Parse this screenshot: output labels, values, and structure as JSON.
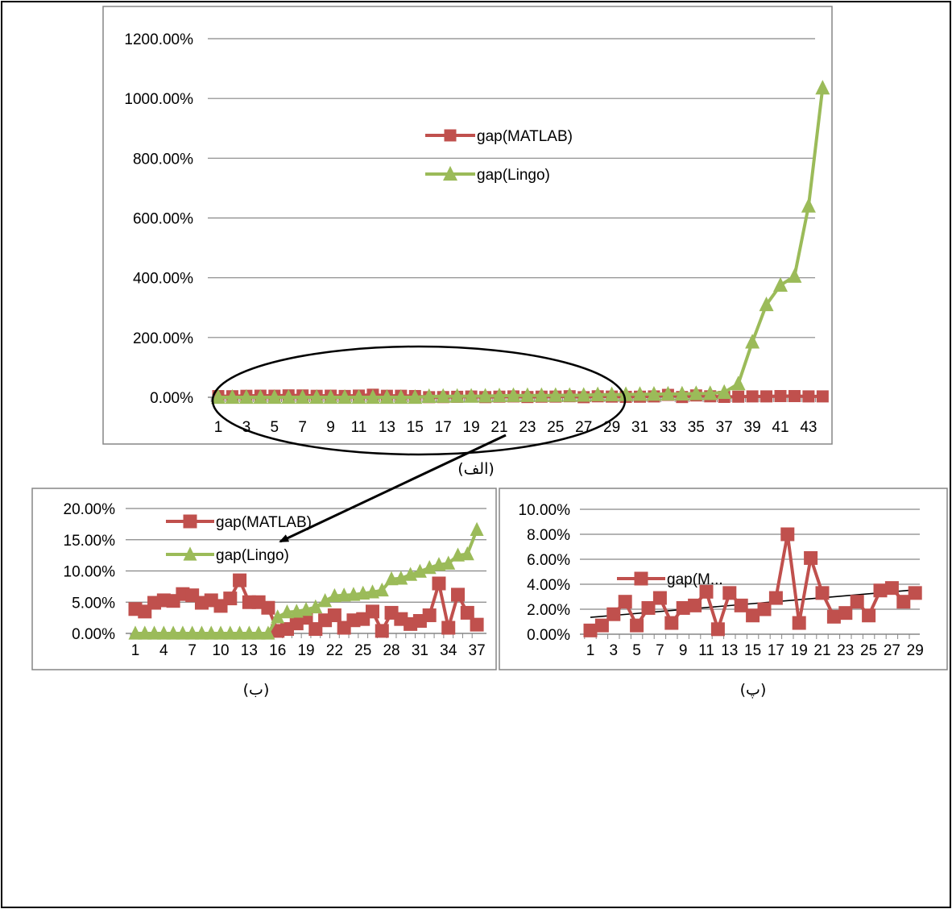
{
  "captions": {
    "a": "(الف)",
    "b": "(ب)",
    "c": "(پ)"
  },
  "colors": {
    "matlab": "#c0504d",
    "lingo": "#9bbb59",
    "grid": "#868686",
    "trend": "#000000"
  },
  "chart_data": [
    {
      "id": "a",
      "type": "line",
      "x": [
        1,
        2,
        3,
        4,
        5,
        6,
        7,
        8,
        9,
        10,
        11,
        12,
        13,
        14,
        15,
        16,
        17,
        18,
        19,
        20,
        21,
        22,
        23,
        24,
        25,
        26,
        27,
        28,
        29,
        30,
        31,
        32,
        33,
        34,
        35,
        36,
        37,
        38,
        39,
        40,
        41,
        42,
        43,
        44
      ],
      "xtick_labels": [
        "1",
        "3",
        "5",
        "7",
        "9",
        "11",
        "13",
        "15",
        "17",
        "19",
        "21",
        "23",
        "25",
        "27",
        "29",
        "31",
        "33",
        "35",
        "37",
        "39",
        "41",
        "43"
      ],
      "ylim": [
        0,
        12
      ],
      "ytick_labels": [
        "0.00%",
        "200.00%",
        "400.00%",
        "600.00%",
        "800.00%",
        "1000.00%",
        "1200.00%"
      ],
      "grid": true,
      "legend_position": "center",
      "series": [
        {
          "name": "gap(MATLAB)",
          "marker": "square",
          "values": [
            0.039,
            0.035,
            0.049,
            0.053,
            0.052,
            0.063,
            0.061,
            0.049,
            0.053,
            0.044,
            0.056,
            0.085,
            0.05,
            0.05,
            0.041,
            0.004,
            0.007,
            0.016,
            0.025,
            0.007,
            0.021,
            0.029,
            0.009,
            0.021,
            0.023,
            0.035,
            0.004,
            0.033,
            0.023,
            0.015,
            0.02,
            0.029,
            0.08,
            0.009,
            0.062,
            0.033,
            0.014,
            0.02,
            0.03,
            0.03,
            0.04,
            0.04,
            0.03,
            0.03
          ]
        },
        {
          "name": "gap(Lingo)",
          "marker": "triangle",
          "values": [
            0,
            0,
            0,
            0,
            0,
            0,
            0,
            0,
            0,
            0,
            0,
            0,
            0,
            0,
            0,
            0.026,
            0.034,
            0.035,
            0.038,
            0.042,
            0.052,
            0.06,
            0.061,
            0.062,
            0.064,
            0.066,
            0.069,
            0.087,
            0.088,
            0.094,
            0.099,
            0.105,
            0.11,
            0.112,
            0.125,
            0.127,
            0.166,
            0.45,
            1.85,
            3.1,
            3.75,
            4.05,
            6.4,
            10.35
          ]
        }
      ]
    },
    {
      "id": "b",
      "type": "line",
      "x": [
        1,
        2,
        3,
        4,
        5,
        6,
        7,
        8,
        9,
        10,
        11,
        12,
        13,
        14,
        15,
        16,
        17,
        18,
        19,
        20,
        21,
        22,
        23,
        24,
        25,
        26,
        27,
        28,
        29,
        30,
        31,
        32,
        33,
        34,
        35,
        36,
        37
      ],
      "xtick_labels": [
        "1",
        "4",
        "7",
        "10",
        "13",
        "16",
        "19",
        "22",
        "25",
        "28",
        "31",
        "34",
        "37"
      ],
      "ylim": [
        0,
        0.2
      ],
      "ytick_labels": [
        "0.00%",
        "5.00%",
        "10.00%",
        "15.00%",
        "20.00%"
      ],
      "grid": true,
      "legend_position": "top",
      "series": [
        {
          "name": "gap(MATLAB)",
          "marker": "square",
          "values": [
            0.039,
            0.035,
            0.049,
            0.053,
            0.052,
            0.063,
            0.061,
            0.049,
            0.053,
            0.044,
            0.056,
            0.085,
            0.05,
            0.05,
            0.041,
            0.004,
            0.007,
            0.016,
            0.025,
            0.007,
            0.021,
            0.029,
            0.009,
            0.021,
            0.023,
            0.035,
            0.004,
            0.033,
            0.023,
            0.015,
            0.02,
            0.029,
            0.08,
            0.009,
            0.062,
            0.033,
            0.014
          ]
        },
        {
          "name": "gap(Lingo)",
          "marker": "triangle",
          "values": [
            0,
            0,
            0,
            0,
            0,
            0,
            0,
            0,
            0,
            0,
            0,
            0,
            0,
            0,
            0,
            0.026,
            0.034,
            0.035,
            0.038,
            0.042,
            0.052,
            0.06,
            0.061,
            0.062,
            0.064,
            0.066,
            0.069,
            0.087,
            0.088,
            0.094,
            0.099,
            0.105,
            0.11,
            0.112,
            0.125,
            0.127,
            0.166
          ]
        }
      ]
    },
    {
      "id": "c",
      "type": "line",
      "x": [
        1,
        2,
        3,
        4,
        5,
        6,
        7,
        8,
        9,
        10,
        11,
        12,
        13,
        14,
        15,
        16,
        17,
        18,
        19,
        20,
        21,
        22,
        23,
        24,
        25,
        26,
        27,
        28,
        29
      ],
      "xtick_labels": [
        "1",
        "3",
        "5",
        "7",
        "9",
        "11",
        "13",
        "15",
        "17",
        "19",
        "21",
        "23",
        "25",
        "27",
        "29"
      ],
      "ylim": [
        0,
        0.1
      ],
      "ytick_labels": [
        "0.00%",
        "2.00%",
        "4.00%",
        "6.00%",
        "8.00%",
        "10.00%"
      ],
      "grid": true,
      "legend_position": "left",
      "trendline": {
        "from": [
          1,
          0.0135
        ],
        "to": [
          29,
          0.0355
        ]
      },
      "series": [
        {
          "name": "gap(M...",
          "marker": "square",
          "values": [
            0.003,
            0.007,
            0.016,
            0.026,
            0.007,
            0.021,
            0.029,
            0.009,
            0.021,
            0.023,
            0.034,
            0.004,
            0.033,
            0.023,
            0.015,
            0.02,
            0.029,
            0.08,
            0.009,
            0.061,
            0.033,
            0.014,
            0.017,
            0.026,
            0.015,
            0.035,
            0.037,
            0.026,
            0.033
          ]
        }
      ]
    }
  ]
}
